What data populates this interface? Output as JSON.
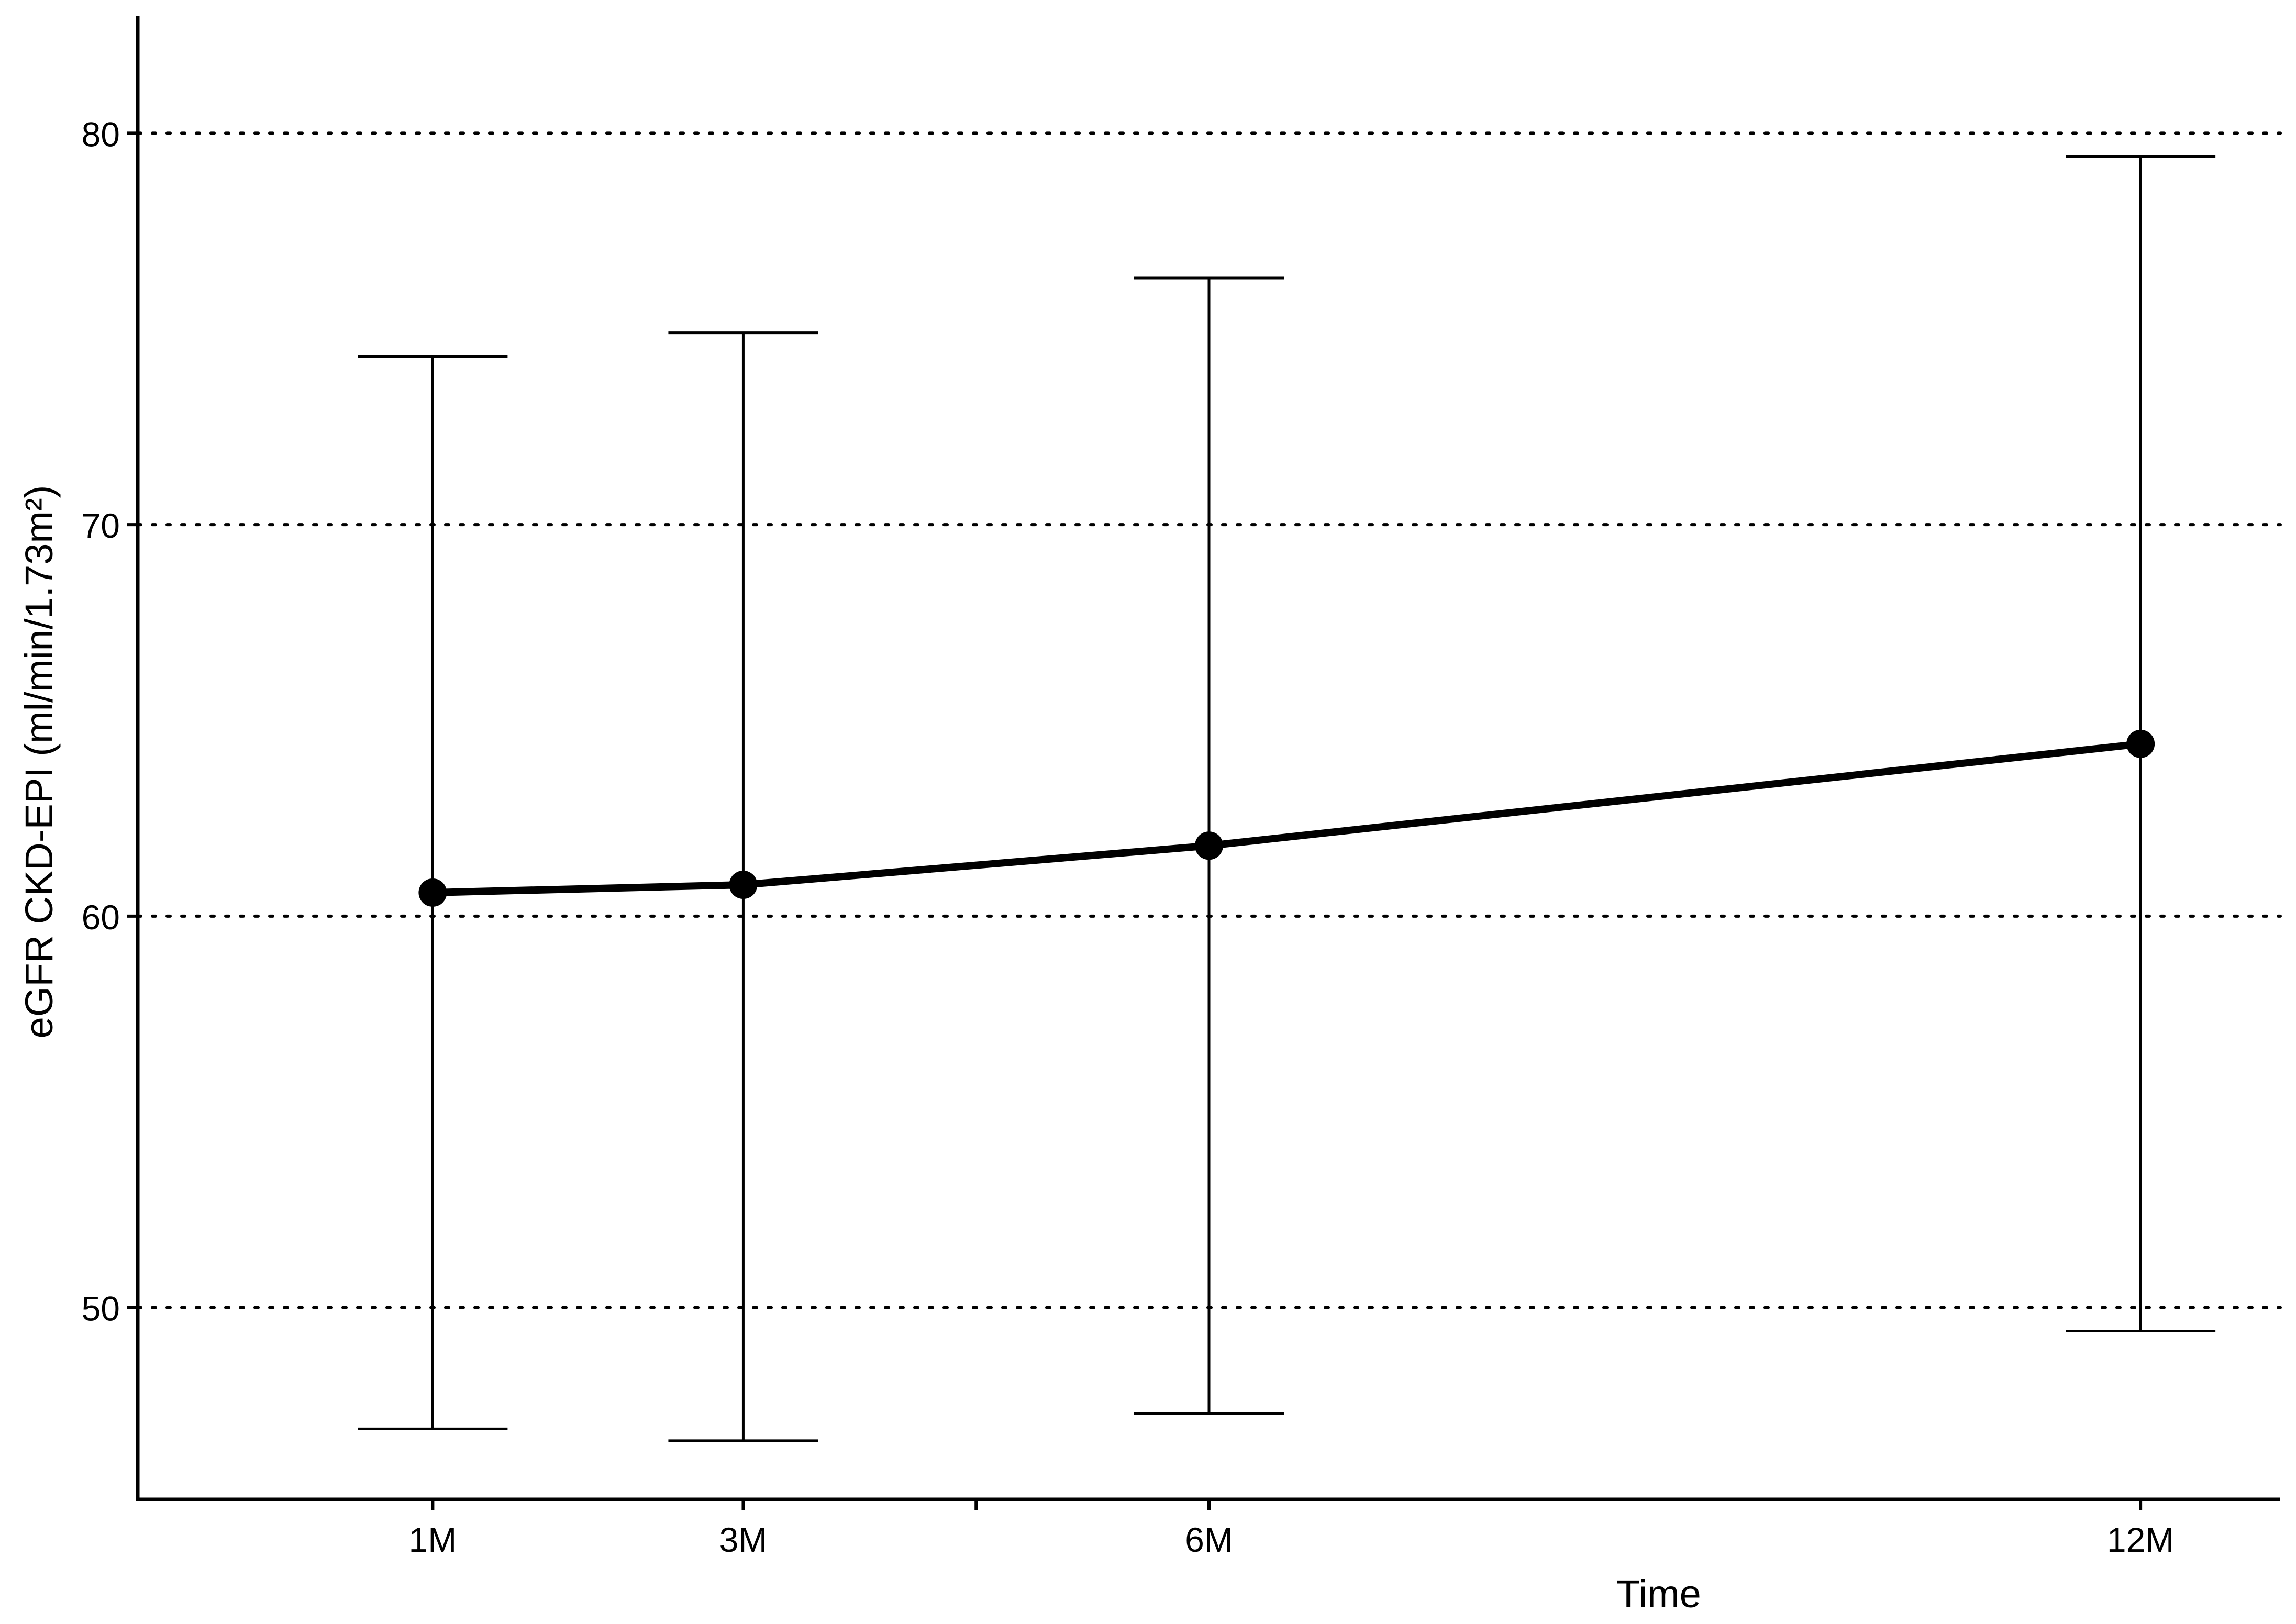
{
  "chart_data": {
    "type": "line",
    "xlabel": "Time",
    "ylabel": "eGFR CKD-EPI (ml/min/1.73m²)",
    "x": [
      1,
      3,
      6,
      12
    ],
    "categories": [
      "1M",
      "3M",
      "6M",
      "12M"
    ],
    "xlim": [
      -0.9,
      12.9
    ],
    "ylim": [
      45.1,
      83.0
    ],
    "yticks": [
      50,
      60,
      70,
      80
    ],
    "grid": "horizontal-dotted",
    "series": [
      {
        "values": [
          60.6,
          60.8,
          61.8,
          64.4
        ],
        "error_lower": [
          46.9,
          46.6,
          47.3,
          49.4
        ],
        "error_upper": [
          74.3,
          74.9,
          76.3,
          79.4
        ],
        "color": "#000000"
      }
    ]
  }
}
